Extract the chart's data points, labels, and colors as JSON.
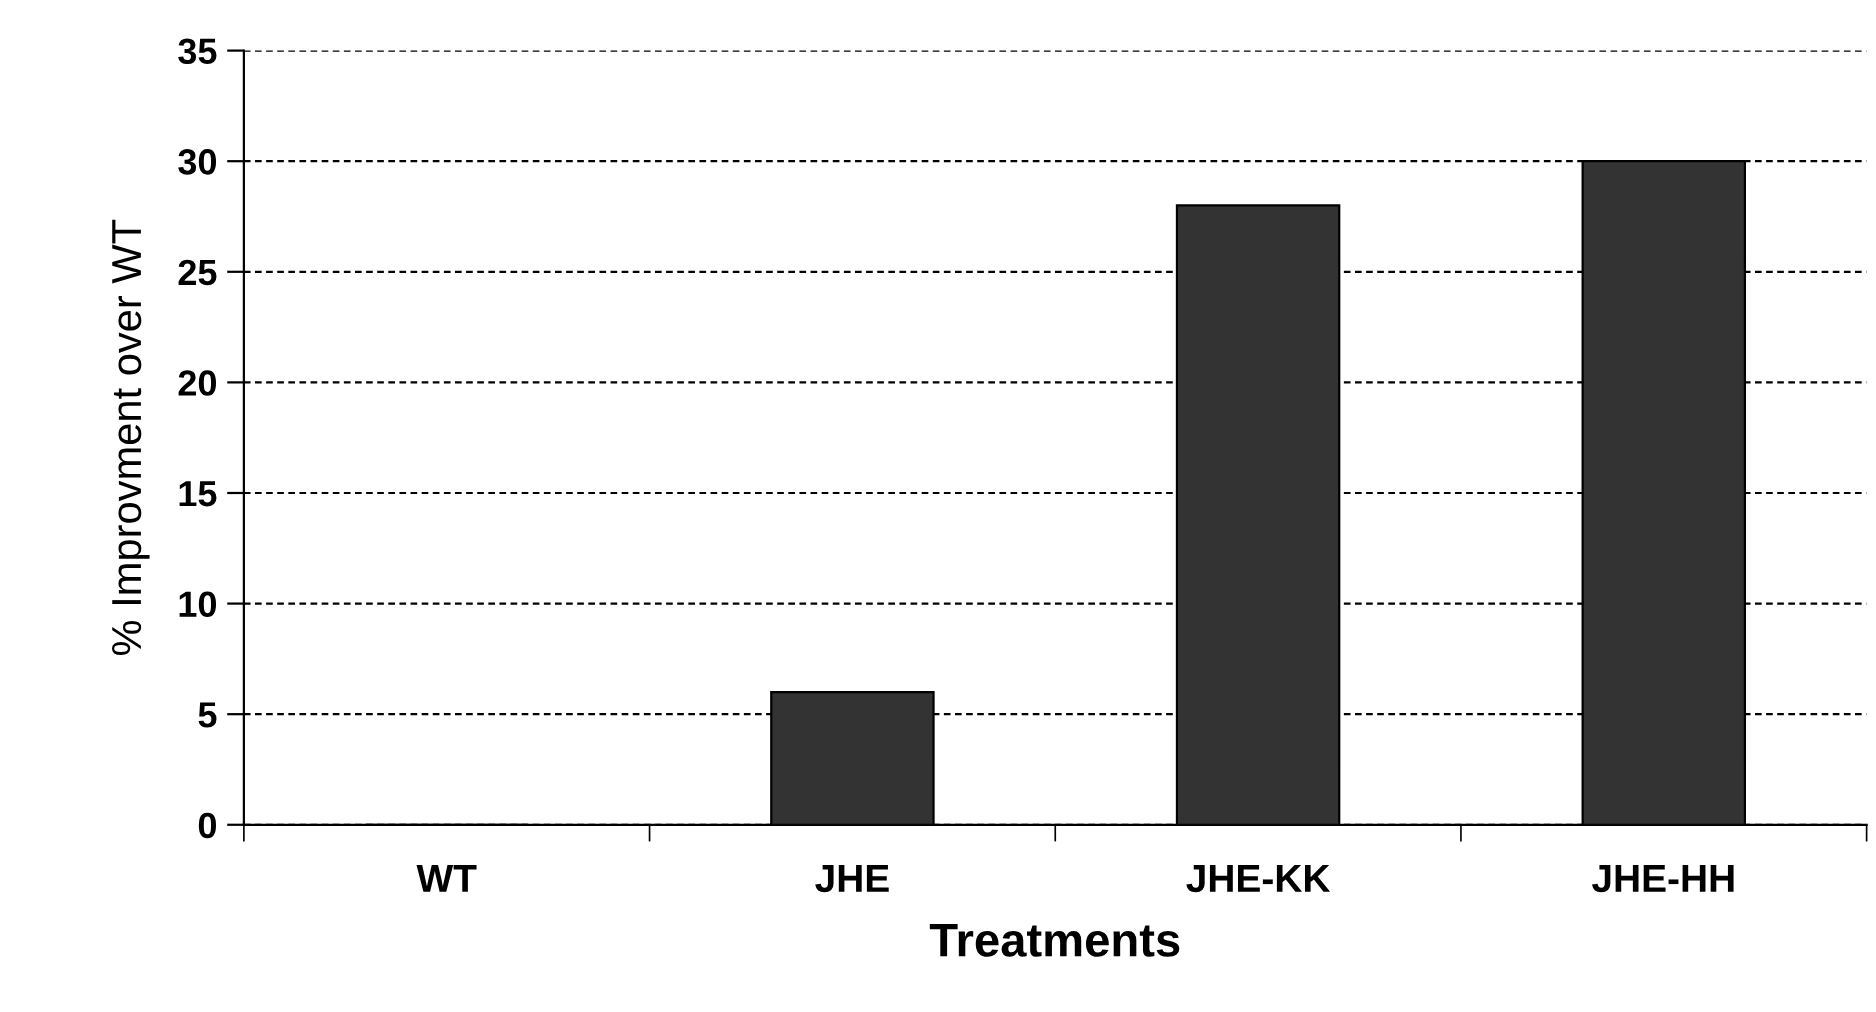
{
  "chart_data": {
    "type": "bar",
    "xlabel": "Treatments",
    "ylabel": "% Improvment over WT",
    "categories": [
      "WT",
      "JHE",
      "JHE-KK",
      "JHE-HH"
    ],
    "values": [
      0,
      6,
      28,
      30
    ],
    "color": "#333333",
    "ylim": [
      0,
      35
    ],
    "yticks": [
      0,
      5,
      10,
      15,
      20,
      25,
      30,
      35
    ],
    "grid": "y"
  }
}
